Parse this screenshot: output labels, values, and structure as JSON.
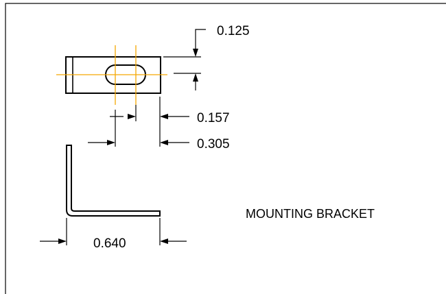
{
  "title": "MOUNTING BRACKET",
  "dimensions": {
    "thickness": "0.125",
    "slot_width": "0.157",
    "slot_offset": "0.305",
    "leg_length": "0.640"
  },
  "colors": {
    "line": "#000000",
    "centerline": "#f5a800",
    "background": "#ffffff"
  }
}
